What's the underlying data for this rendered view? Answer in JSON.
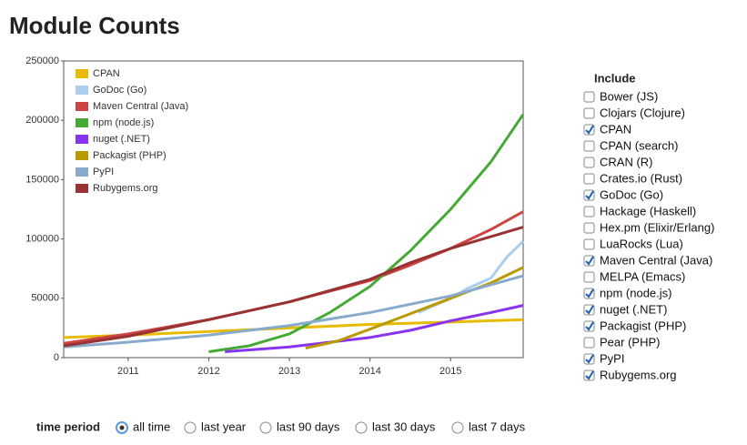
{
  "page_title": "Module Counts",
  "chart_data": {
    "type": "line",
    "xlim": [
      2010.2,
      2015.9
    ],
    "xticks": [
      2011,
      2012,
      2013,
      2014,
      2015
    ],
    "ylim": [
      0,
      250000
    ],
    "yticks": [
      0,
      50000,
      100000,
      150000,
      200000,
      250000
    ],
    "grid": false,
    "legend": "top-left",
    "series": [
      {
        "name": "CPAN",
        "color": "#e6bb00",
        "x": [
          2010.2,
          2011,
          2012,
          2013,
          2014,
          2015,
          2015.9
        ],
        "values": [
          17000,
          19000,
          22000,
          25000,
          28000,
          30000,
          32000
        ]
      },
      {
        "name": "GoDoc (Go)",
        "color": "#aacfee",
        "x": [
          2014.6,
          2015,
          2015.2,
          2015.5,
          2015.7,
          2015.9
        ],
        "values": [
          38000,
          50000,
          58000,
          67000,
          85000,
          98000
        ]
      },
      {
        "name": "Maven Central (Java)",
        "color": "#cc4444",
        "x": [
          2010.2,
          2011,
          2012,
          2013,
          2014,
          2014.5,
          2015,
          2015.5,
          2015.9
        ],
        "values": [
          12000,
          20000,
          32000,
          47000,
          65000,
          78000,
          92000,
          108000,
          123000
        ]
      },
      {
        "name": "npm (node.js)",
        "color": "#44aa33",
        "x": [
          2012,
          2012.5,
          2013,
          2013.5,
          2014,
          2014.5,
          2015,
          2015.5,
          2015.9
        ],
        "values": [
          5000,
          10000,
          20000,
          38000,
          60000,
          90000,
          125000,
          165000,
          205000
        ]
      },
      {
        "name": "nuget (.NET)",
        "color": "#8833ee",
        "x": [
          2012.2,
          2013,
          2014,
          2014.5,
          2015,
          2015.5,
          2015.9
        ],
        "values": [
          5000,
          9000,
          17000,
          23000,
          31000,
          38000,
          44000
        ]
      },
      {
        "name": "Packagist (PHP)",
        "color": "#bb9900",
        "x": [
          2013.2,
          2013.6,
          2014,
          2014.5,
          2015,
          2015.5,
          2015.9
        ],
        "values": [
          8000,
          14000,
          24000,
          37000,
          50000,
          63000,
          76000
        ]
      },
      {
        "name": "PyPI",
        "color": "#88aacc",
        "x": [
          2010.2,
          2011,
          2012,
          2013,
          2014,
          2015,
          2015.9
        ],
        "values": [
          9000,
          13000,
          19000,
          27000,
          38000,
          52000,
          69000
        ]
      },
      {
        "name": "Rubygems.org",
        "color": "#993333",
        "x": [
          2010.2,
          2011,
          2012,
          2013,
          2014,
          2014.5,
          2015,
          2015.9
        ],
        "values": [
          10000,
          18000,
          32000,
          47000,
          66000,
          80000,
          92000,
          110000
        ]
      }
    ]
  },
  "include": {
    "title": "Include",
    "options": [
      {
        "label": "Bower (JS)",
        "checked": false
      },
      {
        "label": "Clojars (Clojure)",
        "checked": false
      },
      {
        "label": "CPAN",
        "checked": true
      },
      {
        "label": "CPAN (search)",
        "checked": false
      },
      {
        "label": "CRAN (R)",
        "checked": false
      },
      {
        "label": "Crates.io (Rust)",
        "checked": false
      },
      {
        "label": "GoDoc (Go)",
        "checked": true
      },
      {
        "label": "Hackage (Haskell)",
        "checked": false
      },
      {
        "label": "Hex.pm (Elixir/Erlang)",
        "checked": false
      },
      {
        "label": "LuaRocks (Lua)",
        "checked": false
      },
      {
        "label": "Maven Central (Java)",
        "checked": true
      },
      {
        "label": "MELPA (Emacs)",
        "checked": false
      },
      {
        "label": "npm (node.js)",
        "checked": true
      },
      {
        "label": "nuget (.NET)",
        "checked": true
      },
      {
        "label": "Packagist (PHP)",
        "checked": true
      },
      {
        "label": "Pear (PHP)",
        "checked": false
      },
      {
        "label": "PyPI",
        "checked": true
      },
      {
        "label": "Rubygems.org",
        "checked": true
      }
    ]
  },
  "time_period": {
    "label": "time period",
    "options": [
      {
        "label": "all time",
        "selected": true
      },
      {
        "label": "last year",
        "selected": false
      },
      {
        "label": "last 90 days",
        "selected": false
      },
      {
        "label": "last 30 days",
        "selected": false
      },
      {
        "label": "last 7 days",
        "selected": false
      }
    ]
  }
}
